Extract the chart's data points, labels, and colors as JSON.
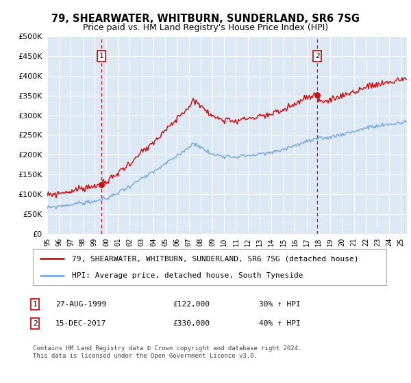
{
  "title": "79, SHEARWATER, WHITBURN, SUNDERLAND, SR6 7SG",
  "subtitle": "Price paid vs. HM Land Registry's House Price Index (HPI)",
  "legend_line1": "79, SHEARWATER, WHITBURN, SUNDERLAND, SR6 7SG (detached house)",
  "legend_line2": "HPI: Average price, detached house, South Tyneside",
  "transaction1_date": "27-AUG-1999",
  "transaction1_price": 122000,
  "transaction1_label": "30% ↑ HPI",
  "transaction2_date": "15-DEC-2017",
  "transaction2_price": 330000,
  "transaction2_label": "40% ↑ HPI",
  "footer": "Contains HM Land Registry data © Crown copyright and database right 2024.\nThis data is licensed under the Open Government Licence v3.0.",
  "hpi_color": "#7aabdc",
  "property_color": "#cc1111",
  "dashed_line_color": "#cc1111",
  "background_color": "#dce9f5",
  "grid_color": "#c0cfe0",
  "ylim": [
    0,
    500000
  ],
  "yticks": [
    0,
    50000,
    100000,
    150000,
    200000,
    250000,
    300000,
    350000,
    400000,
    450000,
    500000
  ]
}
